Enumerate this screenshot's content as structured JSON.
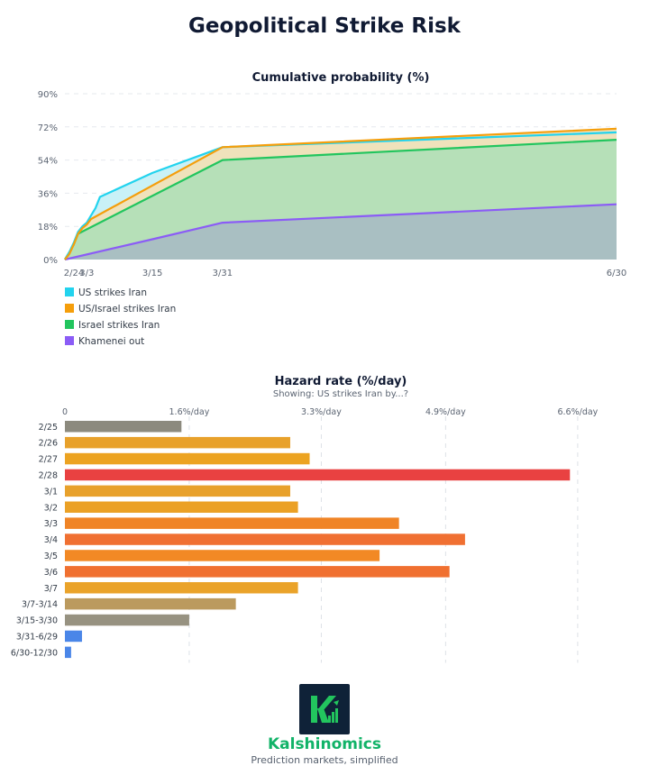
{
  "page": {
    "title": "Geopolitical Strike Risk"
  },
  "chart_data": [
    {
      "type": "area",
      "title": "Cumulative probability (%)",
      "xlabel": "",
      "ylabel": "",
      "ylim": [
        0,
        90
      ],
      "yticks": [
        0,
        18,
        36,
        54,
        72,
        90
      ],
      "ytick_labels": [
        "0%",
        "18%",
        "36%",
        "54%",
        "72%",
        "90%"
      ],
      "xlim": [
        0,
        126
      ],
      "xticks": [
        0,
        5,
        20,
        36,
        126
      ],
      "xtick_labels": [
        "2/24",
        "3/3",
        "3/15",
        "3/31",
        "6/30"
      ],
      "grid": true,
      "legend_position": "bottom-left",
      "series": [
        {
          "name": "US strikes Iran",
          "color": "#22d3ee",
          "fill": "#c9f1f7",
          "x": [
            0,
            1,
            2,
            3,
            4,
            5,
            6,
            7,
            8,
            20,
            36,
            126
          ],
          "y": [
            0,
            4,
            9,
            15,
            18,
            20,
            24,
            28,
            34,
            47,
            61,
            69
          ]
        },
        {
          "name": "US/Israel strikes Iran",
          "color": "#f59e0b",
          "fill": "#efe2bb",
          "x": [
            0,
            1,
            2,
            3,
            4,
            5,
            6,
            36,
            126
          ],
          "y": [
            0,
            3,
            8,
            14,
            17,
            19,
            22,
            61,
            71
          ]
        },
        {
          "name": "Israel strikes Iran",
          "color": "#22c55e",
          "fill": "#b6e0b8",
          "x": [
            0,
            1,
            2,
            3,
            36,
            126
          ],
          "y": [
            0,
            4,
            8,
            14,
            54,
            65
          ]
        },
        {
          "name": "Khamenei out",
          "color": "#8b5cf6",
          "fill": "#a9bfc2",
          "x": [
            0,
            20,
            36,
            126
          ],
          "y": [
            0,
            11,
            20,
            30
          ]
        }
      ]
    },
    {
      "type": "bar",
      "orientation": "horizontal",
      "title": "Hazard rate (%/day)",
      "subtitle": "Showing: US strikes Iran by...?",
      "xlim": [
        0,
        7.1
      ],
      "xticks": [
        0,
        1.6,
        3.3,
        4.9,
        6.6
      ],
      "xtick_labels": [
        "0",
        "1.6%/day",
        "3.3%/day",
        "4.9%/day",
        "6.6%/day"
      ],
      "categories": [
        "2/25",
        "2/26",
        "2/27",
        "2/28",
        "3/1",
        "3/2",
        "3/3",
        "3/4",
        "3/5",
        "3/6",
        "3/7",
        "3/7-3/14",
        "3/15-3/30",
        "3/31-6/29",
        "6/30-12/30"
      ],
      "values": [
        1.5,
        2.9,
        3.15,
        6.5,
        2.9,
        3.0,
        4.3,
        5.15,
        4.05,
        4.95,
        3.0,
        2.2,
        1.6,
        0.22,
        0.08
      ],
      "colors": [
        "#8c8a7e",
        "#e8a12b",
        "#eca321",
        "#e94141",
        "#e8a12b",
        "#eba126",
        "#f08426",
        "#f07032",
        "#f28925",
        "#f07030",
        "#eaa32a",
        "#bb9a5e",
        "#979281",
        "#4a86e8",
        "#4a86e8"
      ]
    }
  ],
  "brand": {
    "name": "Kalshinomics",
    "tagline": "Prediction markets, simplified",
    "logo_letter": "K",
    "logo_bg_color": "#0f2238",
    "logo_fg_color": "#22c55e"
  }
}
